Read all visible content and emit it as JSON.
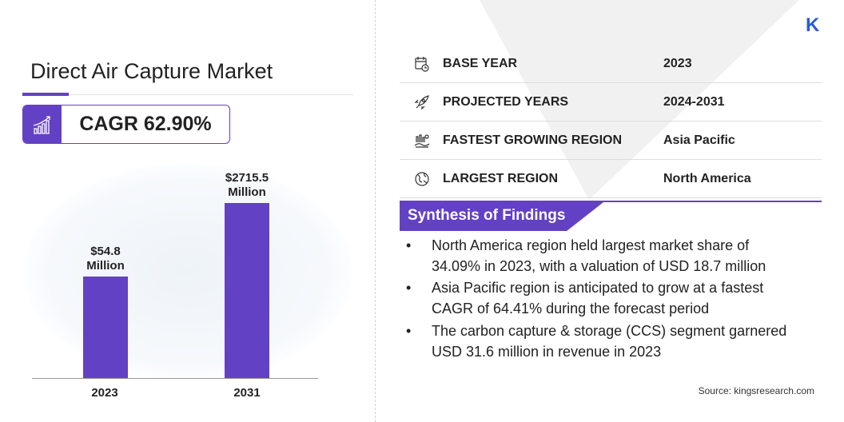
{
  "header": {
    "title": "Direct Air Capture Market",
    "cagr": "CAGR 62.90%"
  },
  "chart_data": {
    "type": "bar",
    "categories": [
      "2023",
      "2031"
    ],
    "values": [
      54.8,
      2715.5
    ],
    "data_labels": [
      "$54.8 Million",
      "$2715.5 Million"
    ],
    "data_label_lines": [
      [
        "$54.8",
        "Million"
      ],
      [
        "$2715.5",
        "Million"
      ]
    ],
    "unit": "USD Million",
    "grid": false,
    "bar_color": "#6341c4"
  },
  "facts": [
    {
      "icon": "calendar-icon",
      "label": "BASE YEAR",
      "value": "2023"
    },
    {
      "icon": "rocket-icon",
      "label": "PROJECTED YEARS",
      "value": "2024-2031"
    },
    {
      "icon": "growth-region-icon",
      "label": "FASTEST GROWING REGION",
      "value": "Asia Pacific"
    },
    {
      "icon": "globe-icon",
      "label": "LARGEST REGION",
      "value": "North America"
    }
  ],
  "synthesis": {
    "title": "Synthesis of Findings",
    "bullets": [
      [
        "North America region held largest market share of",
        "34.09% in 2023, with a valuation of USD 18.7 million"
      ],
      [
        "Asia Pacific region is anticipated to grow at a fastest",
        "CAGR of 64.41% during the forecast period"
      ],
      [
        "The carbon capture & storage (CCS) segment garnered",
        "USD 31.6 million in revenue in 2023"
      ]
    ]
  },
  "source": "Source:  kingsresearch.com",
  "colors": {
    "accent": "#6341c4",
    "logo": "#2a5bd7"
  }
}
